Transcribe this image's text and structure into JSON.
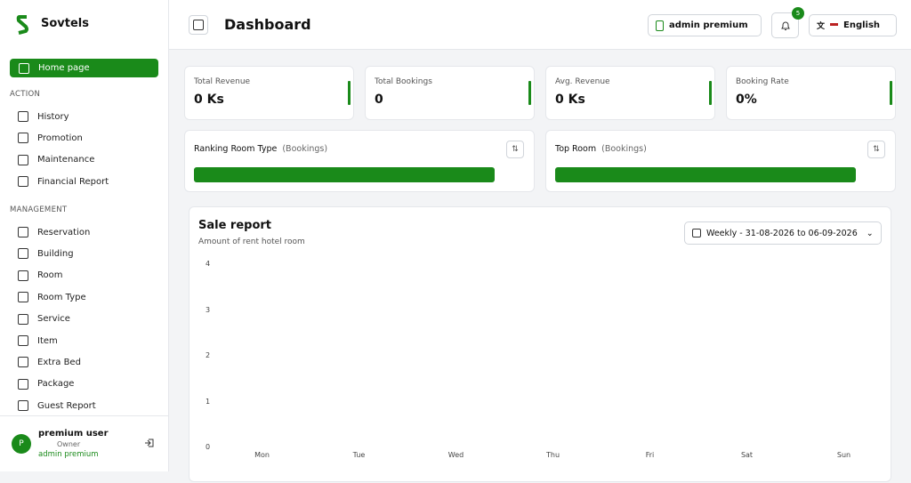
{
  "sidebar": {
    "brand": "Sovtels",
    "active": "Home page",
    "sections": [
      {
        "heading": "ACTION",
        "items": [
          "History",
          "Promotion",
          "Maintenance",
          "Financial Report"
        ]
      },
      {
        "heading": "MANAGEMENT",
        "items": [
          "Reservation",
          "Building",
          "Room",
          "Room Type",
          "Service",
          "Item",
          "Extra Bed",
          "Package",
          "Guest Report"
        ]
      }
    ],
    "user": {
      "avatar": "P",
      "name": "premium user",
      "role": "Owner",
      "account": "admin premium"
    }
  },
  "header": {
    "title": "Dashboard",
    "account": "admin premium",
    "notifications": 5,
    "language": "English"
  },
  "stats": [
    {
      "label": "Total Revenue",
      "value": "0 Ks"
    },
    {
      "label": "Total Bookings",
      "value": "0"
    },
    {
      "label": "Avg. Revenue",
      "value": "0 Ks"
    },
    {
      "label": "Booking Rate",
      "value": "0%"
    }
  ],
  "rankings": [
    {
      "title": "Ranking Room Type",
      "unit": "(Bookings)"
    },
    {
      "title": "Top Room",
      "unit": "(Bookings)"
    }
  ],
  "sale_report": {
    "title": "Sale report",
    "subtitle": "Amount of rent hotel room",
    "range": "Weekly - 31-08-2026 to 06-09-2026",
    "chart": {
      "type": "bar",
      "categories": [
        "Mon",
        "Tue",
        "Wed",
        "Thu",
        "Fri",
        "Sat",
        "Sun"
      ],
      "ylim": [
        0,
        4
      ],
      "yticks": [
        0,
        1,
        2,
        3,
        4
      ]
    }
  }
}
